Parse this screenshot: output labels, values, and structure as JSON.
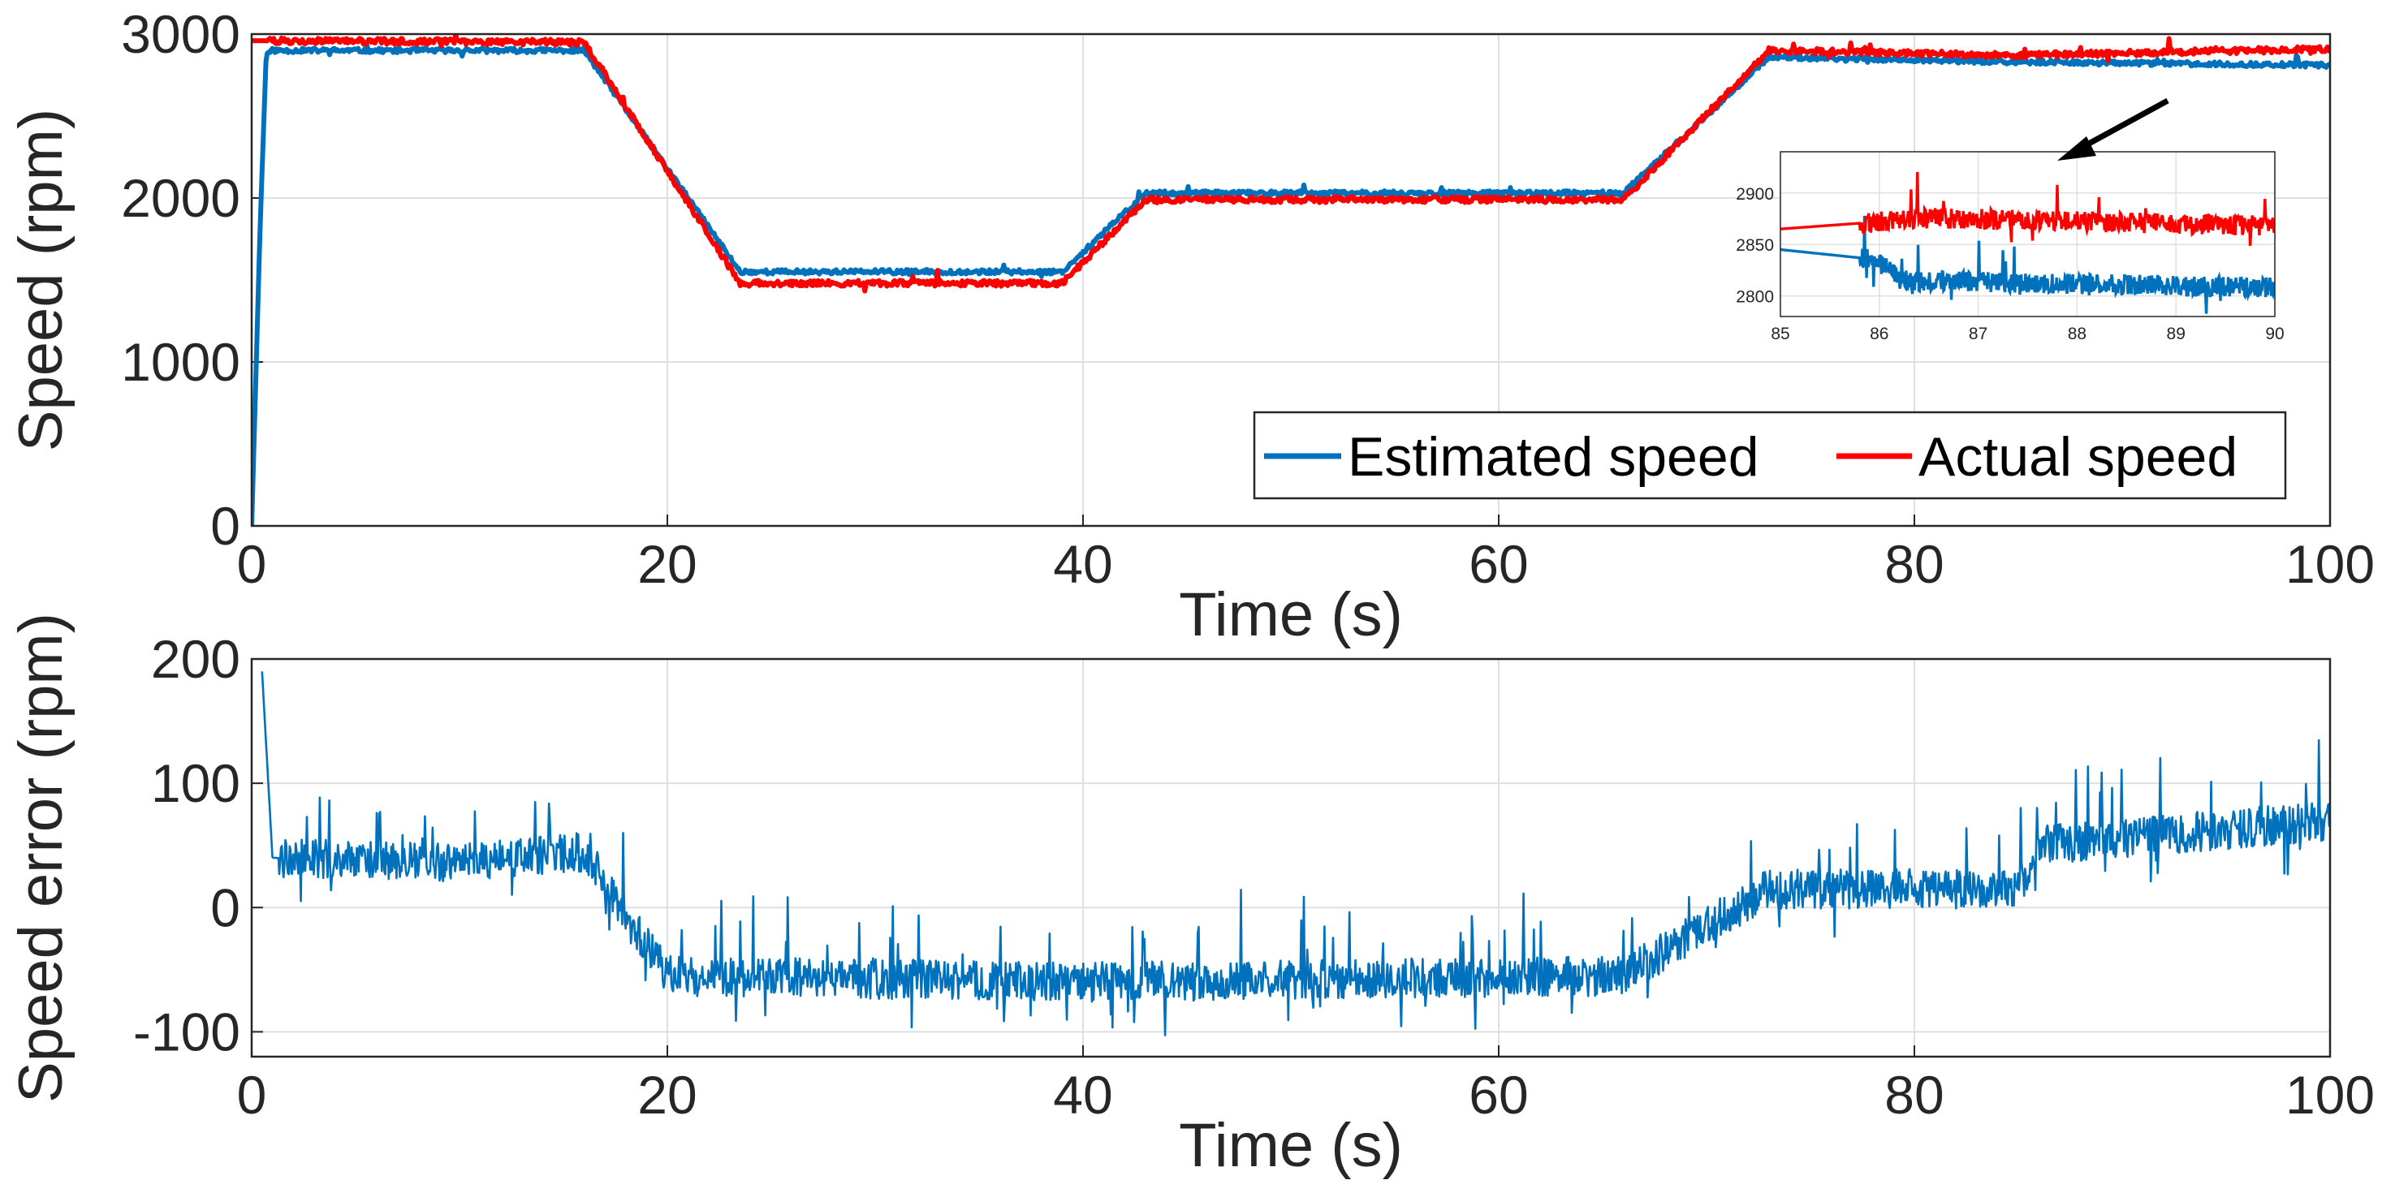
{
  "colors": {
    "estimated": "#0072BD",
    "actual": "#FF0000",
    "grid": "#DFDFDF",
    "axis": "#262626",
    "arrow": "#000000"
  },
  "chart_data": [
    {
      "type": "line",
      "xlabel": "Time (s)",
      "ylabel": "Speed (rpm)",
      "xlim": [
        0,
        100
      ],
      "ylim": [
        0,
        3000
      ],
      "xticks": [
        0,
        20,
        40,
        60,
        80,
        100
      ],
      "yticks": [
        0,
        1000,
        2000,
        3000
      ],
      "xtick_labels": [
        "0",
        "20",
        "40",
        "60",
        "80",
        "100"
      ],
      "ytick_labels": [
        "0",
        "1000",
        "2000",
        "3000"
      ],
      "grid": true,
      "legend": {
        "position": "bottom-right",
        "orientation": "horizontal"
      },
      "series": [
        {
          "name": "Estimated speed",
          "color": "#0072BD",
          "x": [
            0,
            0.4,
            0.7,
            1,
            16,
            23.5,
            39,
            43,
            66,
            73,
            85,
            100
          ],
          "y": [
            0,
            1800,
            2880,
            2900,
            2900,
            1550,
            1550,
            2030,
            2030,
            2860,
            2830,
            2810
          ],
          "noise": 14
        },
        {
          "name": "Actual speed",
          "color": "#FF0000",
          "x": [
            0,
            16,
            23.5,
            39,
            43,
            66,
            73,
            85,
            100
          ],
          "y": [
            2960,
            2950,
            1480,
            1480,
            1990,
            1990,
            2900,
            2870,
            2910
          ],
          "noise": 18
        }
      ],
      "inset": {
        "xlim": [
          85,
          90
        ],
        "ylim": [
          2780,
          2940
        ],
        "xticks": [
          85,
          86,
          87,
          88,
          89,
          90
        ],
        "yticks": [
          2800,
          2850,
          2900
        ],
        "xtick_labels": [
          "85",
          "86",
          "87",
          "88",
          "89",
          "90"
        ],
        "ytick_labels": [
          "2800",
          "2850",
          "2900"
        ],
        "series": [
          {
            "name": "Estimated speed",
            "color": "#0072BD",
            "x": [
              85,
              86,
              86.2,
              90
            ],
            "y": [
              2845,
              2835,
              2815,
              2808
            ],
            "noise": 10
          },
          {
            "name": "Actual speed",
            "color": "#FF0000",
            "x": [
              85,
              86,
              86.3,
              90
            ],
            "y": [
              2865,
              2872,
              2876,
              2868
            ],
            "noise": 10
          }
        ]
      }
    },
    {
      "type": "line",
      "xlabel": "Time (s)",
      "ylabel": "Speed error (rpm)",
      "xlim": [
        0,
        100
      ],
      "ylim": [
        -120,
        200
      ],
      "xticks": [
        0,
        20,
        40,
        60,
        80,
        100
      ],
      "yticks": [
        -100,
        0,
        100,
        200
      ],
      "xtick_labels": [
        "0",
        "20",
        "40",
        "60",
        "80",
        "100"
      ],
      "ytick_labels": [
        "-100",
        "0",
        "100",
        "200"
      ],
      "grid": true,
      "series": [
        {
          "name": "Speed error",
          "color": "#0072BD",
          "x": [
            0.5,
            1,
            10,
            16,
            20,
            40,
            66,
            73,
            85,
            86,
            100
          ],
          "y": [
            190,
            40,
            35,
            45,
            -55,
            -60,
            -55,
            15,
            15,
            50,
            70
          ],
          "noise": 16
        }
      ]
    }
  ]
}
